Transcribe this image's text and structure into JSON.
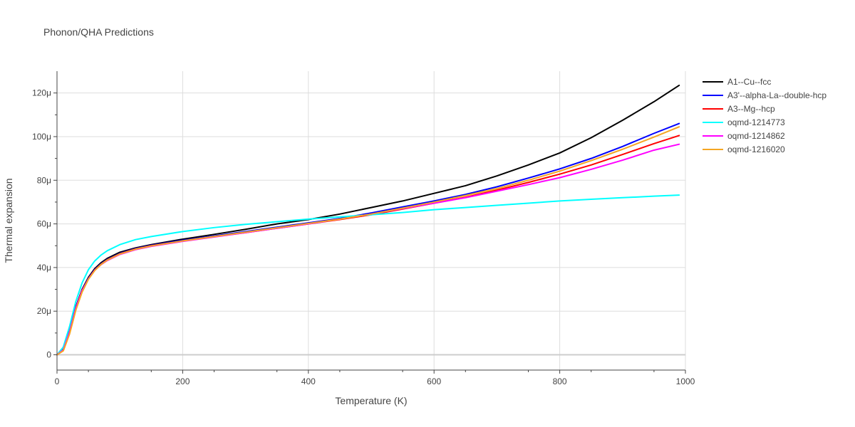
{
  "chart_data": {
    "type": "line",
    "title": "Phonon/QHA Predictions",
    "xlabel": "Temperature (K)",
    "ylabel": "Thermal expansion",
    "xlim": [
      0,
      1000
    ],
    "ylim": [
      -7e-06,
      0.00013
    ],
    "x_ticks": [
      0,
      200,
      400,
      600,
      800,
      1000
    ],
    "x_tick_labels": [
      "0",
      "200",
      "400",
      "600",
      "800",
      "1000"
    ],
    "y_ticks": [
      0,
      2e-05,
      4e-05,
      6e-05,
      8e-05,
      0.0001,
      0.00012
    ],
    "y_tick_labels": [
      "0",
      "20μ",
      "40μ",
      "60μ",
      "80μ",
      "100μ",
      "120μ"
    ],
    "grid": true,
    "legend_position": "right",
    "x": [
      0,
      10,
      20,
      30,
      40,
      50,
      60,
      70,
      80,
      100,
      125,
      150,
      200,
      250,
      300,
      350,
      400,
      450,
      500,
      550,
      600,
      650,
      700,
      750,
      800,
      850,
      900,
      950,
      990
    ],
    "series": [
      {
        "name": "A1--Cu--fcc",
        "color": "#000000",
        "values": [
          0,
          2.5e-06,
          1.1e-05,
          2.2e-05,
          3e-05,
          3.55e-05,
          3.95e-05,
          4.22e-05,
          4.42e-05,
          4.7e-05,
          4.9e-05,
          5.05e-05,
          5.3e-05,
          5.52e-05,
          5.75e-05,
          6e-05,
          6.2e-05,
          6.45e-05,
          6.75e-05,
          7.05e-05,
          7.4e-05,
          7.75e-05,
          8.2e-05,
          8.7e-05,
          9.25e-05,
          9.95e-05,
          0.0001075,
          0.000116,
          0.0001235
        ]
      },
      {
        "name": "A3'--alpha-La--double-hcp",
        "color": "#0000ff",
        "values": [
          0,
          2.3e-06,
          1.05e-05,
          2.15e-05,
          2.95e-05,
          3.5e-05,
          3.9e-05,
          4.17e-05,
          4.37e-05,
          4.65e-05,
          4.87e-05,
          5.02e-05,
          5.25e-05,
          5.45e-05,
          5.65e-05,
          5.85e-05,
          6.05e-05,
          6.25e-05,
          6.5e-05,
          6.78e-05,
          7.05e-05,
          7.35e-05,
          7.7e-05,
          8.1e-05,
          8.52e-05,
          9e-05,
          9.55e-05,
          0.0001015,
          0.000106
        ]
      },
      {
        "name": "A3--Mg--hcp",
        "color": "#ff0000",
        "values": [
          0,
          2e-06,
          1e-05,
          2.1e-05,
          2.9e-05,
          3.48e-05,
          3.88e-05,
          4.15e-05,
          4.35e-05,
          4.63e-05,
          4.85e-05,
          5e-05,
          5.22e-05,
          5.42e-05,
          5.6e-05,
          5.8e-05,
          6e-05,
          6.2e-05,
          6.42e-05,
          6.68e-05,
          6.95e-05,
          7.22e-05,
          7.55e-05,
          7.9e-05,
          8.28e-05,
          8.7e-05,
          9.18e-05,
          9.68e-05,
          0.0001005
        ]
      },
      {
        "name": "oqmd-1214773",
        "color": "#00ffff",
        "values": [
          0,
          3.5e-06,
          1.3e-05,
          2.45e-05,
          3.3e-05,
          3.9e-05,
          4.3e-05,
          4.57e-05,
          4.77e-05,
          5.05e-05,
          5.28e-05,
          5.42e-05,
          5.65e-05,
          5.83e-05,
          5.98e-05,
          6.1e-05,
          6.22e-05,
          6.32e-05,
          6.42e-05,
          6.52e-05,
          6.65e-05,
          6.75e-05,
          6.85e-05,
          6.95e-05,
          7.05e-05,
          7.13e-05,
          7.2e-05,
          7.27e-05,
          7.32e-05
        ]
      },
      {
        "name": "oqmd-1214862",
        "color": "#ff00ff",
        "values": [
          0,
          2.2e-06,
          1.05e-05,
          2.15e-05,
          2.95e-05,
          3.48e-05,
          3.87e-05,
          4.13e-05,
          4.32e-05,
          4.6e-05,
          4.82e-05,
          4.97e-05,
          5.2e-05,
          5.4e-05,
          5.6e-05,
          5.8e-05,
          6e-05,
          6.22e-05,
          6.45e-05,
          6.7e-05,
          6.95e-05,
          7.2e-05,
          7.5e-05,
          7.8e-05,
          8.12e-05,
          8.5e-05,
          8.92e-05,
          9.38e-05,
          9.65e-05
        ]
      },
      {
        "name": "oqmd-1216020",
        "color": "#f5a623",
        "values": [
          0,
          1.8e-06,
          9.5e-06,
          2.05e-05,
          2.88e-05,
          3.46e-05,
          3.86e-05,
          4.14e-05,
          4.34e-05,
          4.62e-05,
          4.84e-05,
          4.99e-05,
          5.22e-05,
          5.42e-05,
          5.62e-05,
          5.82e-05,
          6.02e-05,
          6.22e-05,
          6.45e-05,
          6.72e-05,
          7e-05,
          7.3e-05,
          7.62e-05,
          8e-05,
          8.42e-05,
          8.9e-05,
          9.42e-05,
          9.98e-05,
          0.0001045
        ]
      }
    ]
  }
}
